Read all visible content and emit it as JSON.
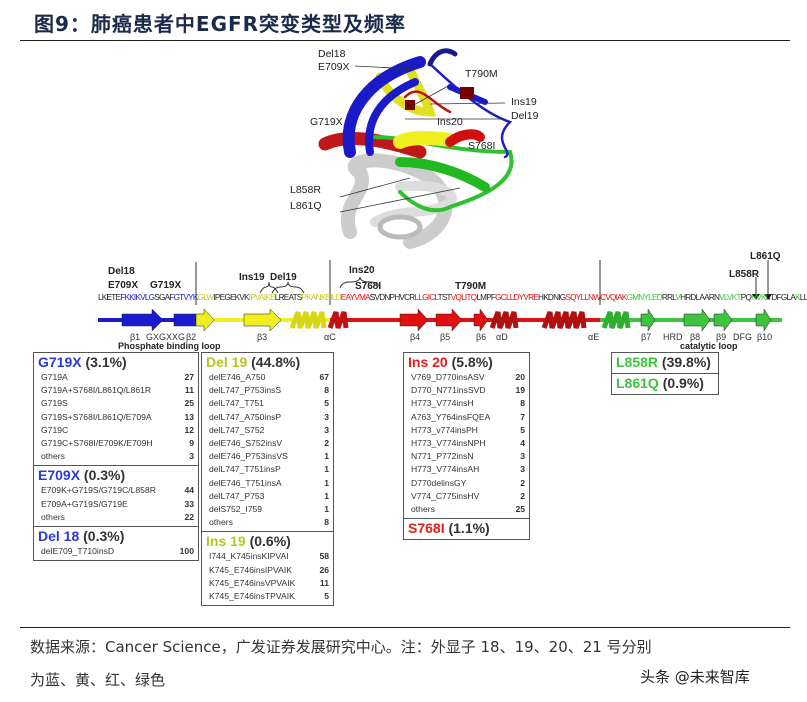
{
  "title": "图9：肺癌患者中EGFR突变类型及频率",
  "structure_labels": {
    "del18": "Del18",
    "e709x": "E709X",
    "t790m": "T790M",
    "ins19": "Ins19",
    "del19": "Del19",
    "g719x": "G719X",
    "ins20": "Ins20",
    "s768i": "S768I",
    "l858r": "L858R",
    "l861q": "L861Q"
  },
  "sequence_annotations": {
    "del18": "Del18",
    "e709x": "E709X",
    "g719x": "G719X",
    "ins19": "Ins19",
    "del19": "Del19",
    "ins20": "Ins20",
    "s768i": "S768I",
    "t790m": "T790M",
    "l858r": "L858R",
    "l861q": "L861Q"
  },
  "sequence": [
    {
      "t": "LK",
      "c": "#222"
    },
    {
      "t": "E",
      "c": "#000"
    },
    {
      "t": "TE",
      "c": "#222"
    },
    {
      "t": "FKKIKVL",
      "c": "#1a1ad0"
    },
    {
      "t": "G",
      "c": "#1a1ad0"
    },
    {
      "t": "SGAF",
      "c": "#222"
    },
    {
      "t": "GTVYK",
      "c": "#1a1ad0"
    },
    {
      "t": "GLW",
      "c": "#c8c820"
    },
    {
      "t": "IPEGEKVK",
      "c": "#222"
    },
    {
      "t": "IPVAIKE",
      "c": "#c8c820"
    },
    {
      "t": "LREATS",
      "c": "#222"
    },
    {
      "t": "PKANKEILD",
      "c": "#c8c820"
    },
    {
      "t": "EAYVMA",
      "c": "#e01010"
    },
    {
      "t": "S",
      "c": "#000"
    },
    {
      "t": "VDNPHVCR",
      "c": "#222"
    },
    {
      "t": "LLGICL",
      "c": "#e01010"
    },
    {
      "t": "TST",
      "c": "#222"
    },
    {
      "t": "VQLITQ",
      "c": "#e01010"
    },
    {
      "t": "LMPF",
      "c": "#222"
    },
    {
      "t": "GCLLDYVRE",
      "c": "#e01010"
    },
    {
      "t": "HKDNIG",
      "c": "#222"
    },
    {
      "t": "SQYLLNWCVQIAK",
      "c": "#e01010"
    },
    {
      "t": "GMNYLED",
      "c": "#3ec43e"
    },
    {
      "t": "RRL",
      "c": "#222"
    },
    {
      "t": "V",
      "c": "#3ec43e"
    },
    {
      "t": "HRDLAARN",
      "c": "#222"
    },
    {
      "t": "VLVKT",
      "c": "#3ec43e"
    },
    {
      "t": "PQ",
      "c": "#222"
    },
    {
      "t": "HVKI",
      "c": "#3ec43e"
    },
    {
      "t": "TDFGL",
      "c": "#222"
    },
    {
      "t": "A",
      "c": "#222"
    },
    {
      "t": "K",
      "c": "#3ec43e"
    },
    {
      "t": "L",
      "c": "#222"
    },
    {
      "t": "LGA",
      "c": "#222"
    }
  ],
  "domain_labels": {
    "b1": "β1",
    "gxg": "GXGXXG",
    "b2": "β2",
    "pbl": "Phosphate binding loop",
    "b3": "β3",
    "ac": "αC",
    "b4": "β4",
    "b5": "β5",
    "b6": "β6",
    "ad": "αD",
    "ae": "αE",
    "b7": "β7",
    "hrd": "HRD",
    "b8": "β8",
    "b9": "β9",
    "dfg": "DFG",
    "b10": "β10",
    "cat": "catalytic loop"
  },
  "colors": {
    "exon18": "#1a1ad0",
    "exon19": "#f0f020",
    "exon20": "#e01010",
    "exon21": "#3ec43e",
    "header_exon19": "#c0c820"
  },
  "tables": {
    "t1": [
      {
        "name": "G719X",
        "pct": " (3.1%)",
        "color": "#2a3ad8",
        "rows": [
          [
            "G719A",
            "27"
          ],
          [
            "G719A+S768I/L861Q/L861R",
            "11"
          ],
          [
            "G719S",
            "25"
          ],
          [
            "G719S+S768I/L861Q/E709A",
            "13"
          ],
          [
            "G719C",
            "12"
          ],
          [
            "G719C+S768I/E709K/E709H",
            "9"
          ],
          [
            "others",
            "3"
          ]
        ]
      },
      {
        "name": "E709X",
        "pct": " (0.3%)",
        "color": "#2a3ad8",
        "rows": [
          [
            "E709K+G719S/G719C/L858R",
            "44"
          ],
          [
            "E709A+G719S/G719E",
            "33"
          ],
          [
            "others",
            "22"
          ]
        ]
      },
      {
        "name": "Del 18",
        "pct": " (0.3%)",
        "color": "#2a3ad8",
        "rows": [
          [
            "delE709_T710insD",
            "100"
          ]
        ]
      }
    ],
    "t2": [
      {
        "name": "Del 19",
        "pct": " (44.8%)",
        "color": "#b8c420",
        "rows": [
          [
            "delE746_A750",
            "67"
          ],
          [
            "delL747_P753insS",
            "8"
          ],
          [
            "delL747_T751",
            "5"
          ],
          [
            "delL747_A750insP",
            "3"
          ],
          [
            "delL747_S752",
            "3"
          ],
          [
            "delE746_S752insV",
            "2"
          ],
          [
            "delE746_P753insVS",
            "1"
          ],
          [
            "delL747_T751insP",
            "1"
          ],
          [
            "delE746_T751insA",
            "1"
          ],
          [
            "delL747_P753",
            "1"
          ],
          [
            "delS752_I759",
            "1"
          ],
          [
            "others",
            "8"
          ]
        ]
      },
      {
        "name": "Ins 19",
        "pct": " (0.6%)",
        "color": "#b8c420",
        "rows": [
          [
            "I744_K745insKIPVAI",
            "58"
          ],
          [
            "K745_E746insIPVAIK",
            "26"
          ],
          [
            "K745_E746insVPVAIK",
            "11"
          ],
          [
            "K745_E746insTPVAIK",
            "5"
          ]
        ]
      }
    ],
    "t3": [
      {
        "name": "Ins 20",
        "pct": " (5.8%)",
        "color": "#e02020",
        "rows": [
          [
            "V769_D770insASV",
            "20"
          ],
          [
            "D770_N771insSVD",
            "19"
          ],
          [
            "H773_V774insH",
            "8"
          ],
          [
            "A763_Y764insFQEA",
            "7"
          ],
          [
            "H773_v774insPH",
            "5"
          ],
          [
            "H773_V774insNPH",
            "4"
          ],
          [
            "N771_P772insN",
            "3"
          ],
          [
            "H773_V774insAH",
            "3"
          ],
          [
            "D770delinsGY",
            "2"
          ],
          [
            "V774_C775insHV",
            "2"
          ],
          [
            "others",
            "25"
          ]
        ]
      },
      {
        "name": "S768I",
        "pct": " (1.1%)",
        "color": "#e02020",
        "rows": []
      }
    ],
    "t4": [
      {
        "name": "L858R",
        "pct": " (39.8%)",
        "color": "#3cc43c",
        "rows": []
      },
      {
        "name": "L861Q",
        "pct": " (0.9%)",
        "color": "#3cc43c",
        "rows": []
      }
    ]
  },
  "footer": {
    "line1": "数据来源：Cancer Science，广发证券发展研究中心。注：外显子 18、19、20、21 号分别",
    "line2": "为蓝、黄、红、绿色",
    "watermark": "头条 @未来智库"
  }
}
